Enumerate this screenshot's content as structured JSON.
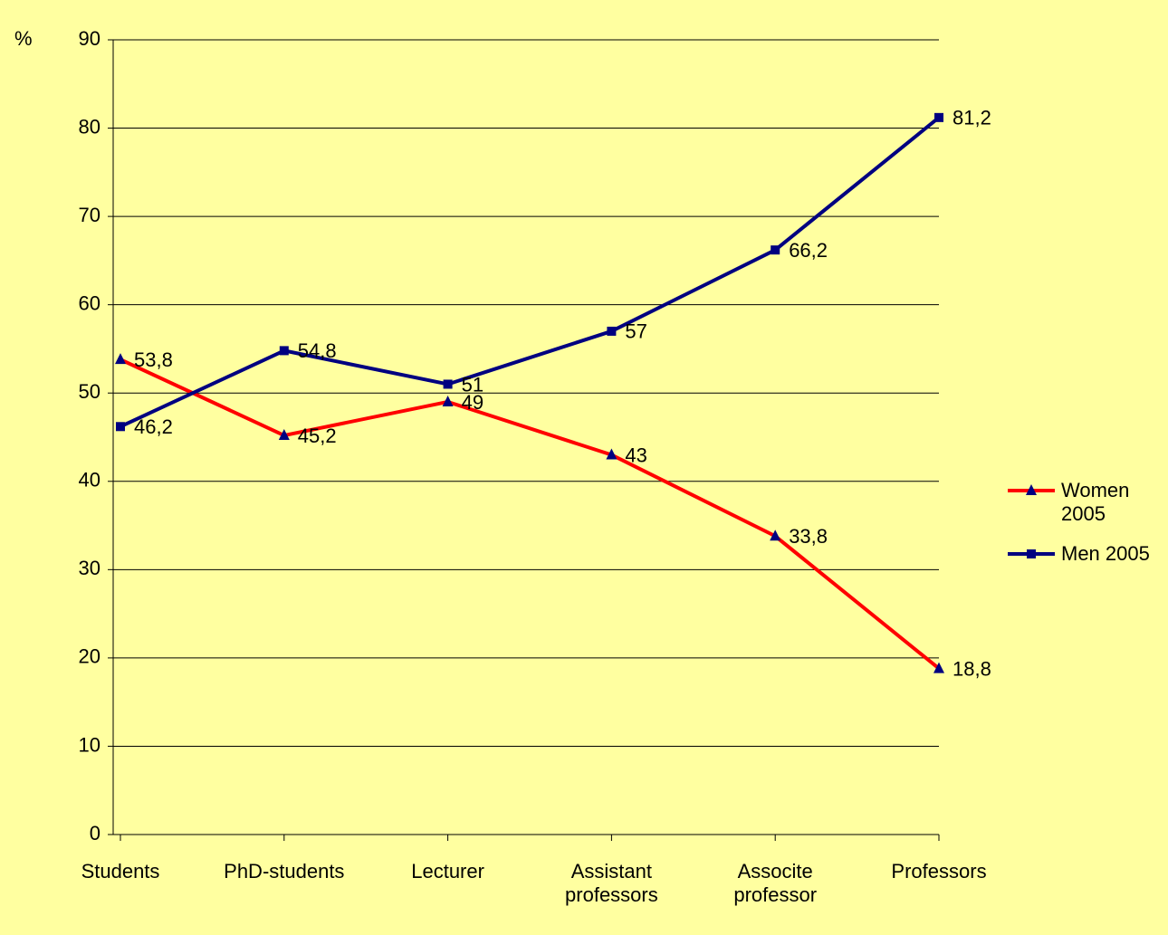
{
  "chart_data": {
    "type": "line",
    "y_axis_label": "%",
    "categories": [
      "Students",
      "PhD-students",
      "Lecturer",
      "Assistant professors",
      "Associte professor",
      "Professors"
    ],
    "series": [
      {
        "name": "Women 2005",
        "color": "#ff0000",
        "marker": "triangle",
        "marker_color": "#000080",
        "values": [
          53.8,
          45.2,
          49,
          43,
          33.8,
          18.8
        ],
        "value_labels": [
          "53,8",
          "45,2",
          "49",
          "43",
          "33,8",
          "18,8"
        ]
      },
      {
        "name": "Men 2005",
        "color": "#000080",
        "marker": "square",
        "marker_color": "#000080",
        "values": [
          46.2,
          54.8,
          51,
          57,
          66.2,
          81.2
        ],
        "value_labels": [
          "46,2",
          "54,8",
          "51",
          "57",
          "66,2",
          "81,2"
        ]
      }
    ],
    "ylim": [
      0,
      90
    ],
    "yticks": [
      0,
      10,
      20,
      30,
      40,
      50,
      60,
      70,
      80,
      90
    ],
    "grid": true,
    "legend": "right",
    "background": "#ffffa0"
  }
}
